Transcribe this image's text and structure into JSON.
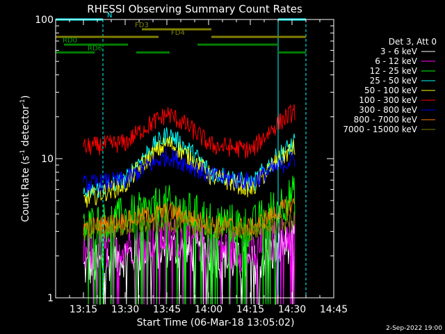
{
  "chart_data": {
    "type": "line",
    "title": "RHESSI Observing Summary Count Rates",
    "xlabel": "Start Time (06-Mar-18 13:05:02)",
    "ylabel_main": "Count Rate (s",
    "ylabel_sup1": "-1",
    "ylabel_mid": " detector",
    "ylabel_sup2": "-1",
    "ylabel_end": ")",
    "y_scale": "log",
    "ylim": [
      1,
      100
    ],
    "xlim": [
      "13:05",
      "14:45"
    ],
    "x_ticks": [
      "13:15",
      "13:30",
      "13:45",
      "14:00",
      "14:15",
      "14:30",
      "14:45"
    ],
    "y_ticks": [
      "1",
      "10",
      "100"
    ],
    "legend_title": "Det 3, Att 0",
    "legend_position": "right",
    "footer_date": "2-Sep-2022 19:00",
    "series": [
      {
        "name": "3 - 6 keV",
        "color": "#ffffff",
        "level": [
          1.6,
          2.0,
          2.3,
          2.0,
          1.7,
          2.6
        ]
      },
      {
        "name": "6 - 12 keV",
        "color": "#ff00ff",
        "level": [
          2.0,
          2.4,
          2.8,
          2.4,
          2.1,
          3.0
        ]
      },
      {
        "name": "12 - 25 keV",
        "color": "#00ff00",
        "level": [
          3.2,
          3.8,
          4.6,
          3.6,
          3.2,
          5.5
        ]
      },
      {
        "name": "25 - 50 keV",
        "color": "#00ffff",
        "level": [
          5.5,
          7.0,
          15.0,
          8.0,
          6.5,
          13.0
        ]
      },
      {
        "name": "50 - 100 keV",
        "color": "#ffff00",
        "level": [
          5.0,
          6.5,
          13.0,
          7.5,
          6.0,
          12.0
        ]
      },
      {
        "name": "100 - 300 keV",
        "color": "#ff0000",
        "level": [
          12.0,
          13.0,
          21.0,
          12.5,
          11.5,
          22.0
        ]
      },
      {
        "name": "300 - 800 keV",
        "color": "#0000ff",
        "level": [
          6.5,
          7.0,
          10.5,
          7.5,
          6.8,
          10.0
        ]
      },
      {
        "name": "800 - 7000 keV",
        "color": "#ff8000",
        "level": [
          3.2,
          3.6,
          4.2,
          3.4,
          3.2,
          4.8
        ]
      },
      {
        "name": "7000 - 15000 keV",
        "color": "#808000",
        "level": [
          3.0,
          3.2,
          3.5,
          3.1,
          3.0,
          3.6
        ]
      }
    ],
    "series_time_span": [
      "13:15",
      "14:31"
    ],
    "attenuator_bars": [
      {
        "label": "N",
        "color": "#00ffff",
        "level": 100,
        "segments": [
          [
            "13:05",
            "13:22"
          ],
          [
            "14:25",
            "14:35"
          ]
        ]
      },
      {
        "label": "FD3",
        "color": "#808000",
        "level": 85,
        "segments": [
          [
            "13:36",
            "14:01"
          ]
        ]
      },
      {
        "label": "FD4",
        "color": "#808000",
        "level": 75,
        "segments": [
          [
            "13:05",
            "13:42"
          ],
          [
            "14:01",
            "14:35"
          ]
        ]
      },
      {
        "label": "RD0",
        "color": "#008000",
        "level": 66,
        "segments": [
          [
            "13:08",
            "13:31"
          ],
          [
            "13:56",
            "14:25"
          ]
        ]
      },
      {
        "label": "RD6",
        "color": "#008000",
        "level": 58,
        "segments": [
          [
            "13:05",
            "13:19"
          ],
          [
            "13:34",
            "13:46"
          ],
          [
            "14:25",
            "14:35"
          ]
        ]
      }
    ],
    "vertical_markers": [
      {
        "time": "13:05",
        "color": "#00ffff",
        "style": "solid"
      },
      {
        "time": "13:22",
        "color": "#00ffff",
        "style": "dashed"
      },
      {
        "time": "14:25",
        "color": "#00ffff",
        "style": "solid"
      },
      {
        "time": "14:35",
        "color": "#00ffff",
        "style": "dashed"
      }
    ]
  }
}
